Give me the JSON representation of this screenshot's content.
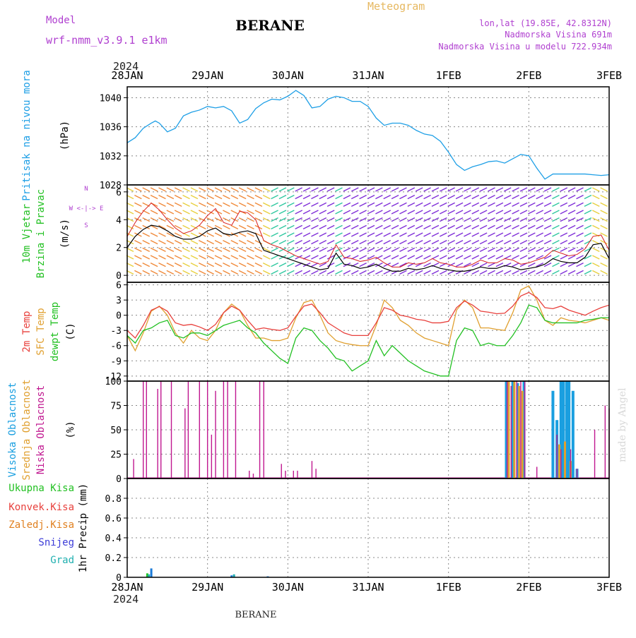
{
  "header": {
    "model_label": "Model",
    "model_name": "wrf-nmm_v3.9.1 e1km",
    "station": "BERANE",
    "meteogram": "Meteogram",
    "lonlat": "lon,lat (19.85E, 42.8312N)",
    "elevation": "Nadmorska Visina 691m",
    "model_elevation": "Nadmorska Visina u modelu 722.934m",
    "year_top": "2024",
    "year_bottom": "2024",
    "footer_station": "BERANE",
    "watermark": "made by Angel"
  },
  "colors": {
    "pressure": "#1e9fe6",
    "temp2m": "#e8403c",
    "sfc": "#e0a030",
    "dew": "#22c022",
    "cloud_high": "#1a9fe0",
    "cloud_mid": "#e0a030",
    "cloud_low": "#c01890",
    "wind_speed": "#000000",
    "blue_label": "#1e9fe6",
    "purple_label": "#b040d0"
  },
  "chart_data": [
    {
      "type": "line",
      "name": "pressure",
      "ylabel_rot": "Pritisak na nivou mora",
      "unit": "(hPa)",
      "x_ticks": [
        "28JAN",
        "29JAN",
        "30JAN",
        "31JAN",
        "1FEB",
        "2FEB",
        "3FEB"
      ],
      "ylim": [
        1028,
        1041.5
      ],
      "y_ticks": [
        "1028",
        "1032",
        "1036",
        "1040"
      ],
      "x": [
        0,
        0.1,
        0.2,
        0.3,
        0.35,
        0.4,
        0.5,
        0.6,
        0.7,
        0.8,
        0.9,
        1.0,
        1.1,
        1.2,
        1.3,
        1.4,
        1.5,
        1.6,
        1.7,
        1.8,
        1.9,
        2.0,
        2.1,
        2.2,
        2.3,
        2.4,
        2.5,
        2.6,
        2.7,
        2.8,
        2.9,
        3.0,
        3.1,
        3.2,
        3.3,
        3.4,
        3.5,
        3.6,
        3.7,
        3.8,
        3.9,
        4.0,
        4.1,
        4.2,
        4.3,
        4.4,
        4.5,
        4.6,
        4.7,
        4.8,
        4.9,
        5.0,
        5.1,
        5.2,
        5.3,
        5.4,
        5.5,
        5.6,
        5.7,
        5.8,
        5.9,
        6.0
      ],
      "series": [
        {
          "values": [
            1033.8,
            1034.5,
            1035.8,
            1036.5,
            1036.8,
            1036.5,
            1035.3,
            1035.8,
            1037.5,
            1038.0,
            1038.3,
            1038.8,
            1038.6,
            1038.8,
            1038.2,
            1036.5,
            1037.0,
            1038.5,
            1039.3,
            1039.8,
            1039.7,
            1040.2,
            1041.0,
            1040.3,
            1038.6,
            1038.8,
            1039.8,
            1040.2,
            1040.0,
            1039.5,
            1039.5,
            1038.8,
            1037.2,
            1036.2,
            1036.5,
            1036.5,
            1036.2,
            1035.5,
            1035.0,
            1034.8,
            1034.0,
            1032.5,
            1030.8,
            1030.0,
            1030.5,
            1030.8,
            1031.2,
            1031.3,
            1031.0,
            1031.6,
            1032.2,
            1032.0,
            1030.3,
            1028.8,
            1029.5,
            1029.5,
            1029.5,
            1029.5,
            1029.5,
            1029.4,
            1029.3,
            1029.4
          ]
        }
      ]
    },
    {
      "type": "line",
      "name": "wind",
      "ylabel_rot_1": "10m Vjetar",
      "ylabel_rot_2": "Brzina i Pravac",
      "unit": "(m/s)",
      "compass": "W <-|-> E",
      "compass_n": "N",
      "compass_s": "S",
      "ylim": [
        -0.5,
        6.5
      ],
      "y_ticks": [
        "0",
        "2",
        "4",
        "6"
      ],
      "x": [
        0,
        0.1,
        0.2,
        0.3,
        0.4,
        0.5,
        0.6,
        0.7,
        0.8,
        0.9,
        1.0,
        1.1,
        1.2,
        1.3,
        1.4,
        1.5,
        1.6,
        1.7,
        1.8,
        1.9,
        2.0,
        2.1,
        2.2,
        2.3,
        2.4,
        2.5,
        2.6,
        2.7,
        2.8,
        2.9,
        3.0,
        3.1,
        3.2,
        3.3,
        3.4,
        3.5,
        3.6,
        3.7,
        3.8,
        3.9,
        4.0,
        4.1,
        4.2,
        4.3,
        4.4,
        4.5,
        4.6,
        4.7,
        4.8,
        4.9,
        5.0,
        5.1,
        5.2,
        5.3,
        5.4,
        5.5,
        5.6,
        5.7,
        5.8,
        5.9,
        6.0
      ],
      "series": [
        {
          "name": "speed",
          "values": [
            2.0,
            2.8,
            3.3,
            3.6,
            3.5,
            3.2,
            2.8,
            2.6,
            2.6,
            2.8,
            3.2,
            3.4,
            3.0,
            2.9,
            3.1,
            3.2,
            3.0,
            1.8,
            1.6,
            1.4,
            1.2,
            1.0,
            0.8,
            0.6,
            0.4,
            0.5,
            1.6,
            0.8,
            0.7,
            0.5,
            0.6,
            0.8,
            0.5,
            0.3,
            0.3,
            0.5,
            0.4,
            0.5,
            0.7,
            0.5,
            0.4,
            0.3,
            0.3,
            0.4,
            0.6,
            0.5,
            0.5,
            0.7,
            0.6,
            0.4,
            0.5,
            0.6,
            0.8,
            1.2,
            1.0,
            0.9,
            0.9,
            1.3,
            2.2,
            2.3,
            1.2
          ]
        },
        {
          "name": "gust",
          "values": [
            2.8,
            3.8,
            4.6,
            5.2,
            4.7,
            4.0,
            3.4,
            3.0,
            3.2,
            3.6,
            4.3,
            4.8,
            3.8,
            3.6,
            4.6,
            4.5,
            4.0,
            2.5,
            2.2,
            2.0,
            1.7,
            1.4,
            1.2,
            1.0,
            0.8,
            1.0,
            2.2,
            1.3,
            1.2,
            1.0,
            1.1,
            1.3,
            0.9,
            0.6,
            0.6,
            0.9,
            0.8,
            0.9,
            1.2,
            0.9,
            0.8,
            0.6,
            0.6,
            0.8,
            1.1,
            0.9,
            0.9,
            1.2,
            1.1,
            0.8,
            0.9,
            1.1,
            1.3,
            1.8,
            1.6,
            1.4,
            1.5,
            1.9,
            2.8,
            2.9,
            1.8
          ]
        }
      ]
    },
    {
      "type": "line",
      "name": "temperature",
      "ylabel_rot_1": "2m Temp",
      "ylabel_rot_2": "SFC Temp",
      "ylabel_rot_3": "dewpt Temp",
      "unit": "(C)",
      "ylim": [
        -13,
        6.5
      ],
      "y_ticks": [
        "-12",
        "-9",
        "-6",
        "-3",
        "0",
        "3",
        "6"
      ],
      "x": [
        0,
        0.1,
        0.2,
        0.3,
        0.4,
        0.5,
        0.6,
        0.7,
        0.8,
        0.9,
        1.0,
        1.1,
        1.2,
        1.3,
        1.4,
        1.5,
        1.6,
        1.7,
        1.8,
        1.9,
        2.0,
        2.1,
        2.2,
        2.3,
        2.4,
        2.5,
        2.6,
        2.7,
        2.8,
        2.9,
        3.0,
        3.1,
        3.2,
        3.3,
        3.4,
        3.5,
        3.6,
        3.7,
        3.8,
        3.9,
        4.0,
        4.1,
        4.2,
        4.3,
        4.4,
        4.5,
        4.6,
        4.7,
        4.8,
        4.9,
        5.0,
        5.1,
        5.2,
        5.3,
        5.4,
        5.5,
        5.6,
        5.7,
        5.8,
        5.9,
        6.0
      ],
      "series": [
        {
          "name": "2m",
          "values": [
            -3.0,
            -4.5,
            -2.0,
            1.0,
            1.7,
            0.8,
            -1.5,
            -2.0,
            -1.8,
            -2.3,
            -3.0,
            -1.8,
            0.5,
            1.8,
            1.0,
            -1.0,
            -2.8,
            -2.5,
            -2.8,
            -3.0,
            -2.5,
            -0.2,
            1.8,
            2.2,
            0.5,
            -1.5,
            -2.5,
            -3.5,
            -4.0,
            -4.0,
            -4.0,
            -1.5,
            1.5,
            1.0,
            0.0,
            -0.3,
            -0.8,
            -1.0,
            -1.5,
            -1.5,
            -1.2,
            1.5,
            2.8,
            2.0,
            0.8,
            0.6,
            0.3,
            0.4,
            1.8,
            3.8,
            4.5,
            3.5,
            1.5,
            1.3,
            1.8,
            1.0,
            0.5,
            0.0,
            0.8,
            1.5,
            2.0
          ]
        },
        {
          "name": "sfc",
          "values": [
            -4.0,
            -7.0,
            -3.5,
            0.8,
            1.8,
            0.0,
            -3.5,
            -5.5,
            -3.0,
            -4.5,
            -5.0,
            -3.0,
            0.5,
            2.2,
            1.0,
            -2.0,
            -4.5,
            -4.5,
            -5.0,
            -5.0,
            -4.5,
            -0.5,
            2.5,
            3.0,
            0.0,
            -3.5,
            -5.0,
            -5.5,
            -5.8,
            -6.0,
            -6.0,
            -2.0,
            3.0,
            1.5,
            -1.0,
            -2.0,
            -3.5,
            -4.5,
            -5.0,
            -5.5,
            -6.0,
            1.0,
            3.0,
            1.5,
            -2.5,
            -2.5,
            -2.8,
            -3.0,
            0.5,
            5.0,
            5.8,
            3.0,
            -1.0,
            -2.0,
            -0.5,
            -1.0,
            -1.2,
            -1.5,
            -1.0,
            -0.5,
            -1.0
          ]
        },
        {
          "name": "dew",
          "values": [
            -4.0,
            -5.5,
            -3.0,
            -2.5,
            -1.5,
            -1.0,
            -4.0,
            -4.5,
            -3.5,
            -3.5,
            -4.0,
            -3.0,
            -2.0,
            -1.5,
            -1.0,
            -2.5,
            -3.5,
            -5.5,
            -7.0,
            -8.5,
            -9.5,
            -4.5,
            -2.5,
            -3.0,
            -5.0,
            -6.5,
            -8.5,
            -9.0,
            -11.0,
            -10.0,
            -9.0,
            -5.0,
            -8.0,
            -6.0,
            -7.5,
            -9.0,
            -10.0,
            -11.0,
            -11.5,
            -12.0,
            -12.0,
            -5.0,
            -2.5,
            -3.0,
            -6.0,
            -5.5,
            -6.0,
            -6.0,
            -4.0,
            -1.5,
            2.0,
            1.5,
            -1.0,
            -1.5,
            -1.5,
            -1.5,
            -1.5,
            -1.0,
            -0.8,
            -0.5,
            -0.5
          ]
        }
      ]
    },
    {
      "type": "bar",
      "name": "clouds",
      "ylabel_rot_1": "Visoka Oblacnost",
      "ylabel_rot_2": "Srednja Oblacnost",
      "ylabel_rot_3": "Niska Oblacnost",
      "unit": "(%)",
      "ylim": [
        0,
        100
      ],
      "y_ticks": [
        "0",
        "25",
        "50",
        "75",
        "100"
      ],
      "low": [
        [
          0.08,
          20
        ],
        [
          0.2,
          100
        ],
        [
          0.24,
          100
        ],
        [
          0.38,
          92
        ],
        [
          0.42,
          100
        ],
        [
          0.55,
          100
        ],
        [
          0.72,
          72
        ],
        [
          0.76,
          100
        ],
        [
          0.9,
          100
        ],
        [
          1.0,
          100
        ],
        [
          1.05,
          45
        ],
        [
          1.1,
          90
        ],
        [
          1.2,
          100
        ],
        [
          1.25,
          100
        ],
        [
          1.35,
          100
        ],
        [
          1.65,
          100
        ],
        [
          1.7,
          100
        ],
        [
          1.52,
          8
        ],
        [
          1.57,
          5
        ],
        [
          1.92,
          15
        ],
        [
          1.97,
          8
        ],
        [
          2.07,
          8
        ],
        [
          2.12,
          8
        ],
        [
          2.3,
          18
        ],
        [
          2.35,
          10
        ],
        [
          4.73,
          100
        ],
        [
          4.78,
          95
        ],
        [
          4.85,
          100
        ],
        [
          4.9,
          100
        ],
        [
          4.95,
          100
        ],
        [
          5.1,
          12
        ],
        [
          5.35,
          45
        ],
        [
          5.4,
          30
        ],
        [
          5.52,
          30
        ],
        [
          5.6,
          10
        ],
        [
          5.82,
          50
        ],
        [
          5.95,
          75
        ],
        [
          6.0,
          72
        ]
      ],
      "mid": [
        [
          4.75,
          100
        ],
        [
          4.82,
          100
        ],
        [
          4.88,
          95
        ],
        [
          4.92,
          90
        ],
        [
          5.38,
          35
        ],
        [
          5.45,
          38
        ],
        [
          5.52,
          18
        ]
      ],
      "high": [
        [
          4.72,
          100
        ],
        [
          4.8,
          100
        ],
        [
          4.86,
          98
        ],
        [
          4.94,
          100
        ],
        [
          5.3,
          90
        ],
        [
          5.35,
          60
        ],
        [
          5.4,
          100
        ],
        [
          5.43,
          100
        ],
        [
          5.47,
          100
        ],
        [
          5.5,
          100
        ],
        [
          5.55,
          90
        ],
        [
          5.6,
          10
        ]
      ]
    },
    {
      "type": "bar",
      "name": "precip",
      "ylabel_rot": "1hr Precip (mm)",
      "legend": [
        "Ukupna Kisa",
        "Konvek.Kisa",
        "Zaledj.Kisa",
        "Snijeg",
        "Grad"
      ],
      "legend_colors": [
        "#22c022",
        "#e8403c",
        "#e08020",
        "#3c3cd8",
        "#20b0b0"
      ],
      "ylim": [
        0,
        1.0
      ],
      "y_ticks": [
        "0",
        "0.2",
        "0.4",
        "0.6",
        "0.8"
      ],
      "bars": [
        [
          0.25,
          0.04,
          "#22c022"
        ],
        [
          0.27,
          0.03,
          "#20b0b0"
        ],
        [
          0.3,
          0.09,
          "#1a7ad8"
        ],
        [
          1.3,
          0.02,
          "#1a7ad8"
        ],
        [
          1.33,
          0.03,
          "#20b0b0"
        ],
        [
          1.75,
          0.01,
          "#1a7ad8"
        ]
      ]
    }
  ]
}
